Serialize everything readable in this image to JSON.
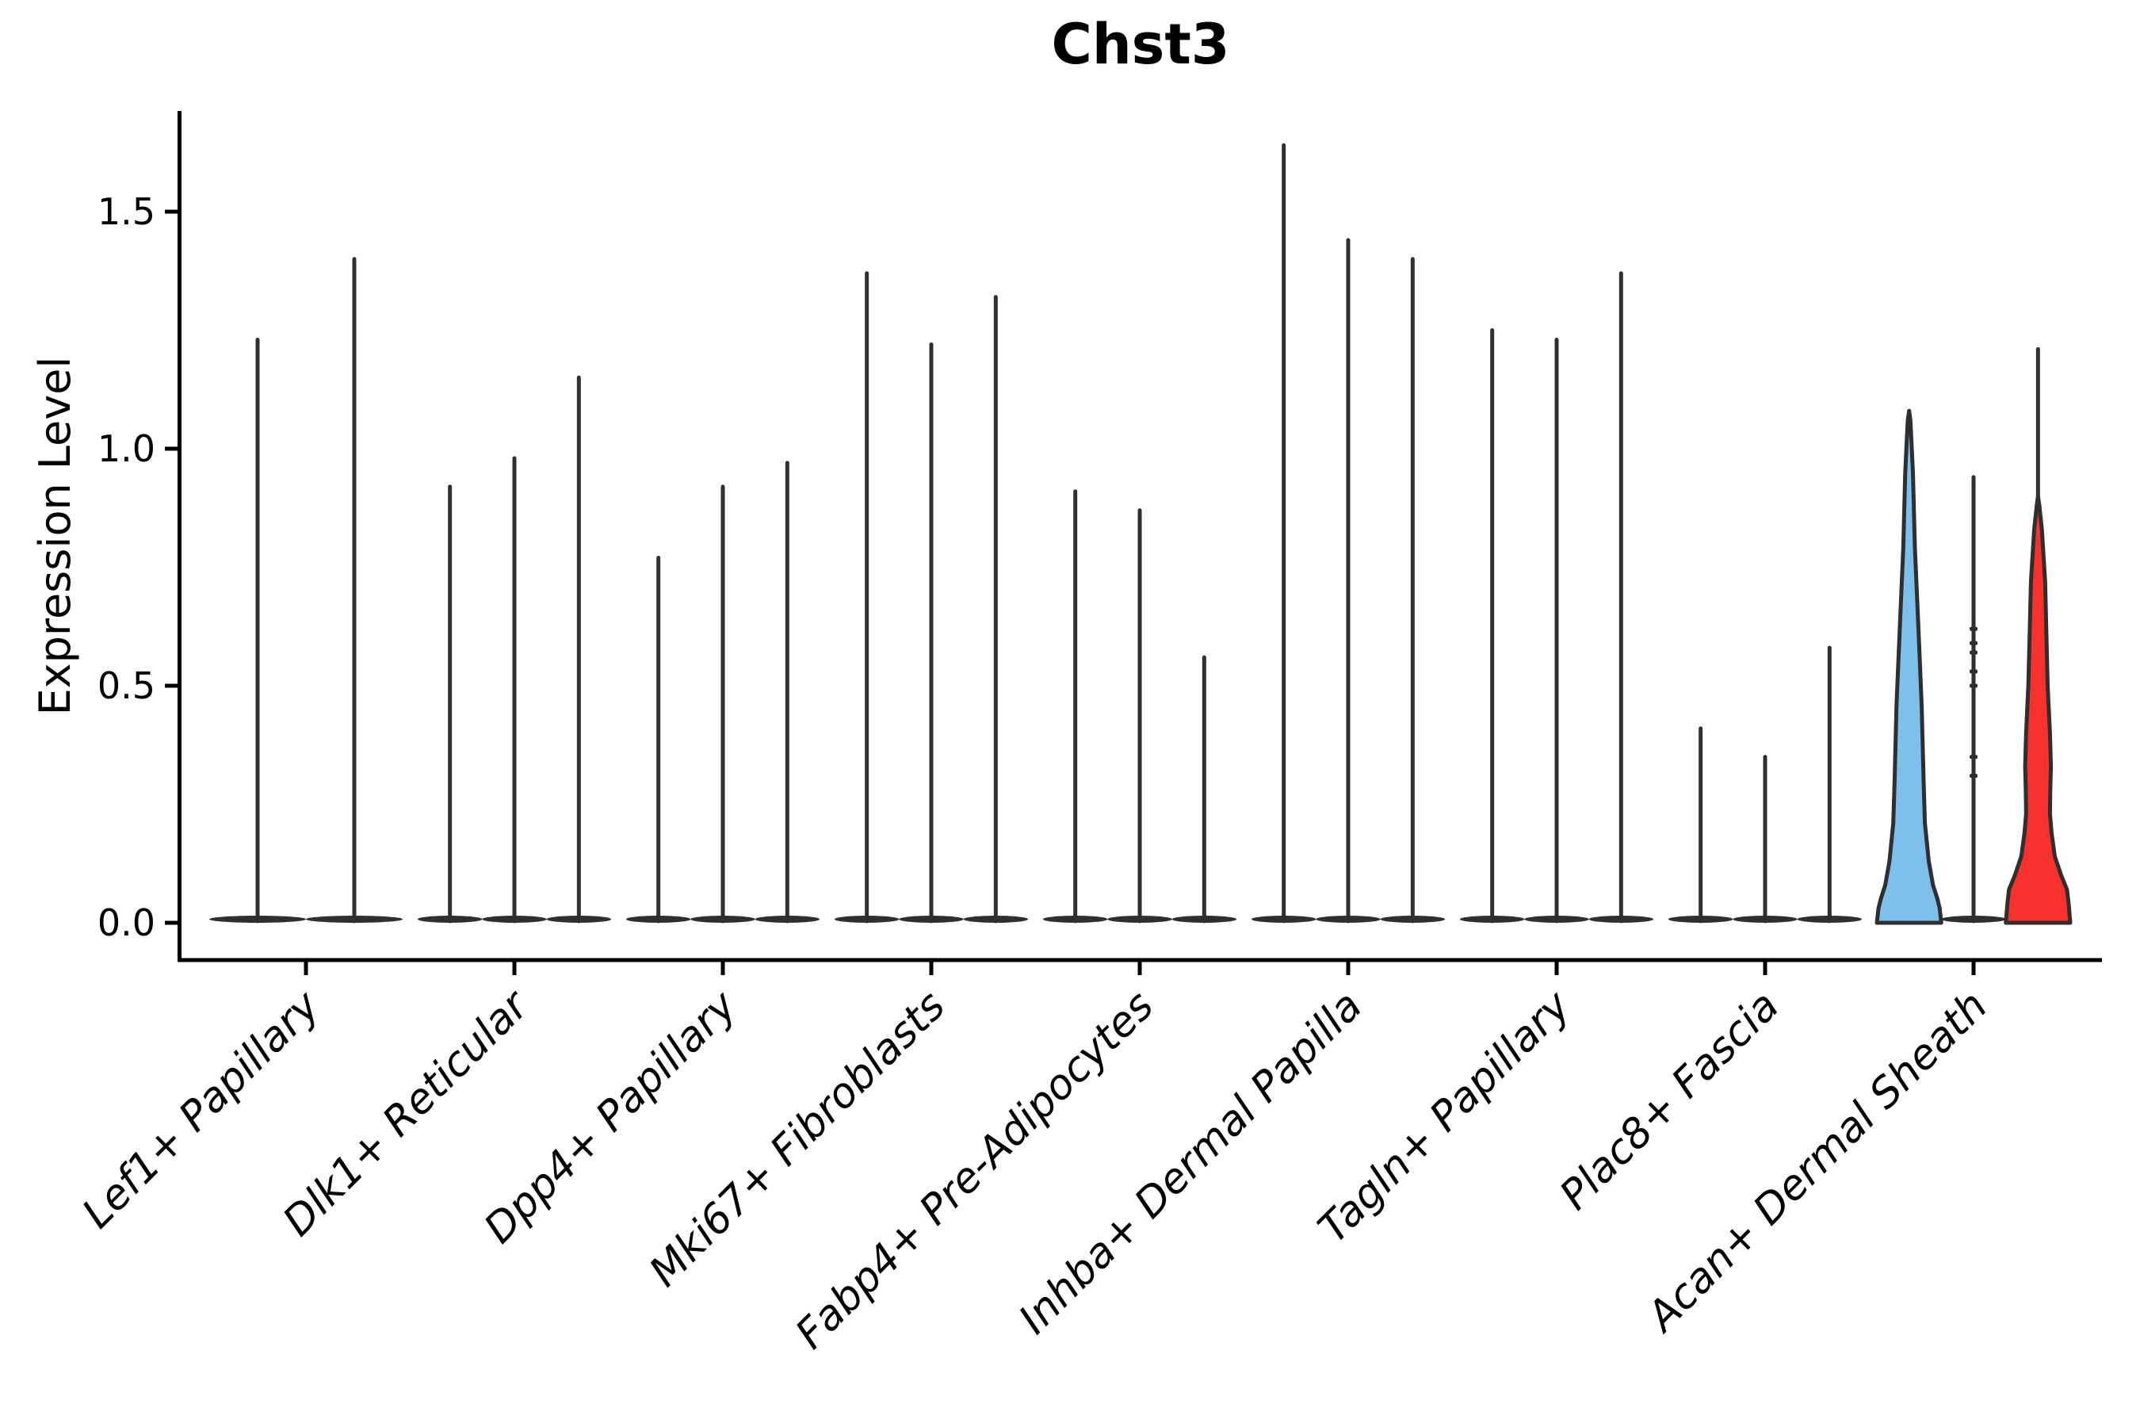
{
  "title": "Chst3",
  "y_axis": {
    "label": "Expression Level",
    "tick_labels": [
      "0.0",
      "0.5",
      "1.0",
      "1.5"
    ],
    "tick_values": [
      0.0,
      0.5,
      1.0,
      1.5
    ]
  },
  "colors": {
    "violin_line": "#2f2f2f",
    "spine": "#000000",
    "highlight_blue": "#7dc0ec",
    "highlight_red": "#f8312d"
  },
  "chart_data": {
    "type": "violin",
    "title": "Chst3",
    "xlabel": "",
    "ylabel": "Expression Level",
    "ylim": [
      0,
      1.71
    ],
    "yticks": [
      0.0,
      0.5,
      1.0,
      1.5
    ],
    "grid": false,
    "legend": "none",
    "note": "Expression of Chst3 per cluster; most violins collapse to a wide base at 0 with a thin density spike; the first and third violins of the last group are filled blue and red.",
    "groups": [
      {
        "label": "Lef1+ Papillary",
        "violins": [
          {
            "peak": 1.23
          },
          {
            "peak": 1.4
          }
        ]
      },
      {
        "label": "Dlk1+ Reticular",
        "violins": [
          {
            "peak": 0.92
          },
          {
            "peak": 0.98
          },
          {
            "peak": 1.15
          }
        ]
      },
      {
        "label": "Dpp4+ Papillary",
        "violins": [
          {
            "peak": 0.77
          },
          {
            "peak": 0.92
          },
          {
            "peak": 0.97
          }
        ]
      },
      {
        "label": "Mki67+ Fibroblasts",
        "violins": [
          {
            "peak": 1.37
          },
          {
            "peak": 1.22
          },
          {
            "peak": 1.32
          }
        ]
      },
      {
        "label": "Fabp4+ Pre-Adipocytes",
        "violins": [
          {
            "peak": 0.91
          },
          {
            "peak": 0.87
          },
          {
            "peak": 0.56
          }
        ]
      },
      {
        "label": "Inhba+ Dermal Papilla",
        "violins": [
          {
            "peak": 1.64
          },
          {
            "peak": 1.44
          },
          {
            "peak": 1.4
          }
        ]
      },
      {
        "label": "Tagln+ Papillary",
        "violins": [
          {
            "peak": 1.25
          },
          {
            "peak": 1.23
          },
          {
            "peak": 1.37
          }
        ]
      },
      {
        "label": "Plac8+ Fascia",
        "violins": [
          {
            "peak": 0.41
          },
          {
            "peak": 0.35
          },
          {
            "peak": 0.58
          }
        ]
      },
      {
        "label": "Acan+ Dermal Sheath",
        "violins": [
          {
            "peak": 1.08,
            "fill": "highlight_blue",
            "profile": [
              [
                0.0,
                1.0
              ],
              [
                0.03,
                0.95
              ],
              [
                0.05,
                0.88
              ],
              [
                0.08,
                0.74
              ],
              [
                0.13,
                0.61
              ],
              [
                0.21,
                0.49
              ],
              [
                0.3,
                0.45
              ],
              [
                0.46,
                0.39
              ],
              [
                0.62,
                0.29
              ],
              [
                0.79,
                0.18
              ],
              [
                0.95,
                0.12
              ],
              [
                1.02,
                0.07
              ],
              [
                1.06,
                0.04
              ],
              [
                1.08,
                0.0
              ]
            ]
          },
          {
            "peak": 0.94,
            "dots": [
              0.62,
              0.59,
              0.57,
              0.53,
              0.5,
              0.35,
              0.31
            ]
          },
          {
            "peak": 1.21,
            "fill": "highlight_red",
            "fill_top": 0.9,
            "profile": [
              [
                0.0,
                1.0
              ],
              [
                0.04,
                0.95
              ],
              [
                0.07,
                0.9
              ],
              [
                0.1,
                0.72
              ],
              [
                0.14,
                0.52
              ],
              [
                0.19,
                0.42
              ],
              [
                0.23,
                0.37
              ],
              [
                0.28,
                0.38
              ],
              [
                0.33,
                0.4
              ],
              [
                0.4,
                0.37
              ],
              [
                0.5,
                0.3
              ],
              [
                0.61,
                0.26
              ],
              [
                0.72,
                0.22
              ],
              [
                0.83,
                0.12
              ],
              [
                0.88,
                0.04
              ],
              [
                0.9,
                0.0
              ]
            ]
          }
        ]
      }
    ]
  }
}
